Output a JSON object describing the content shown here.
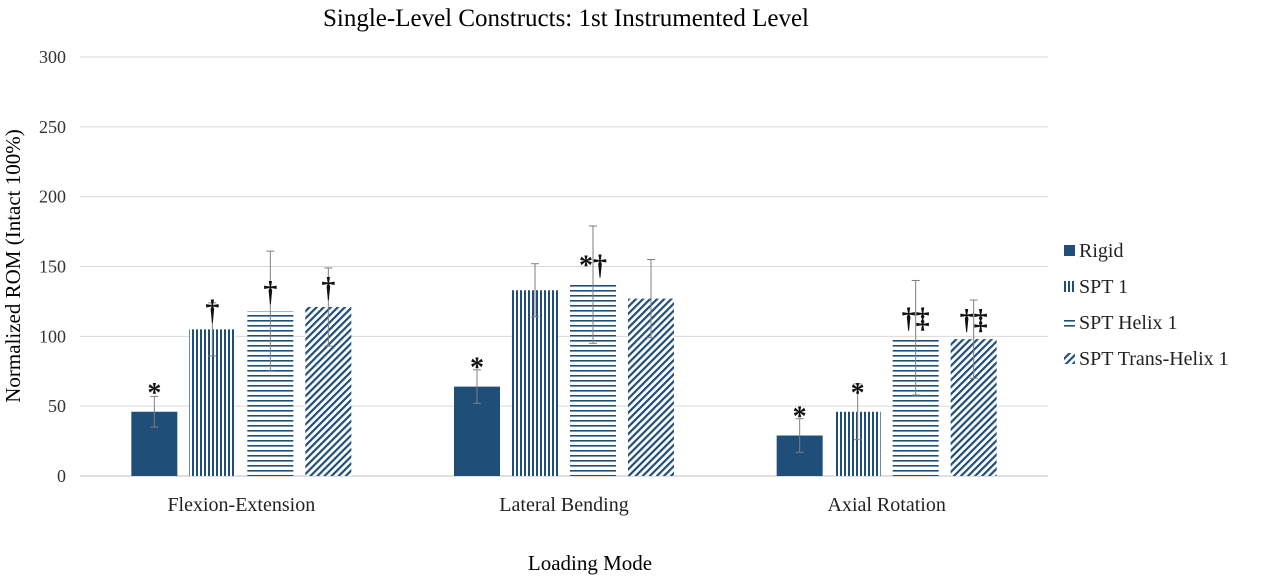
{
  "chart_data": {
    "type": "bar",
    "title": "Single-Level  Constructs: 1st Instrumented Level",
    "xlabel": "Loading Mode",
    "ylabel": "Normalized ROM (Intact 100%)",
    "ylim": [
      0,
      300
    ],
    "yticks": [
      0,
      50,
      100,
      150,
      200,
      250,
      300
    ],
    "grid": true,
    "legend_position": "right",
    "categories": [
      "Flexion-Extension",
      "Lateral Bending",
      "Axial Rotation"
    ],
    "series": [
      {
        "name": "Rigid",
        "pattern": "solid",
        "color": "#1f4e79",
        "values": [
          46,
          64,
          29
        ],
        "errors": [
          11,
          12,
          12
        ],
        "annotations": [
          "*",
          "*",
          "*"
        ]
      },
      {
        "name": "SPT 1",
        "pattern": "vertical",
        "color": "#1f4e79",
        "values": [
          105,
          133,
          46
        ],
        "errors": [
          19,
          19,
          20
        ],
        "annotations": [
          "†",
          "",
          "*"
        ]
      },
      {
        "name": "SPT Helix 1",
        "pattern": "horizontal",
        "color": "#1f4e79",
        "values": [
          118,
          137,
          99
        ],
        "errors": [
          43,
          42,
          41
        ],
        "annotations": [
          "†",
          "*†",
          "†‡"
        ]
      },
      {
        "name": "SPT Trans-Helix 1",
        "pattern": "diagonal",
        "color": "#1f4e79",
        "values": [
          121,
          127,
          98
        ],
        "errors": [
          28,
          28,
          28
        ],
        "annotations": [
          "†",
          "",
          "†‡"
        ]
      }
    ]
  }
}
